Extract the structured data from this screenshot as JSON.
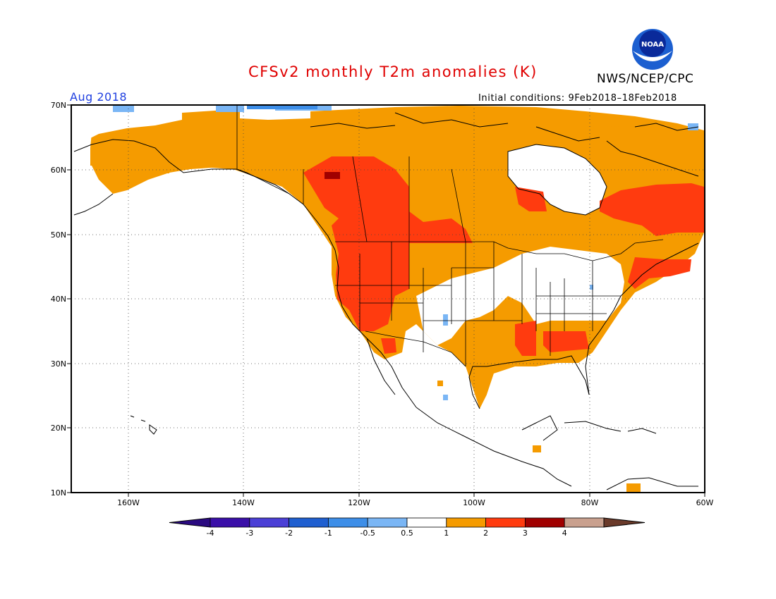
{
  "header": {
    "title": "CFSv2 monthly T2m anomalies (K)",
    "org": "NWS/NCEP/CPC",
    "period": "Aug 2018",
    "initial_conditions": "Initial conditions: 9Feb2018–18Feb2018",
    "logo_text": "NOAA"
  },
  "map": {
    "projection": "lat-lon",
    "lat_range": [
      10,
      70
    ],
    "lon_range": [
      -170,
      -60
    ],
    "lat_ticks": [
      "10N",
      "20N",
      "30N",
      "40N",
      "50N",
      "60N",
      "70N"
    ],
    "lon_ticks": [
      "160W",
      "140W",
      "120W",
      "100W",
      "80W",
      "60W"
    ],
    "grid": "dotted"
  },
  "legend": {
    "labels": [
      "-4",
      "-3",
      "-2",
      "-1",
      "-0.5",
      "0.5",
      "1",
      "2",
      "3",
      "4"
    ],
    "colors": [
      "#3a0fa8",
      "#4b3fd6",
      "#1f5fd0",
      "#3d8ee8",
      "#7ab6f5",
      "#ffffff",
      "#f59b00",
      "#ff3b0f",
      "#a00000",
      "#c9a08e",
      "#7a4a3a"
    ],
    "under_color": "#2a0a80",
    "over_color": "#6a3a2a"
  },
  "colors": {
    "map_orange": "#f59b00",
    "map_red": "#ff3b0f",
    "map_darkred": "#a00000",
    "map_lightblue": "#7ab6f5",
    "map_blue": "#3d8ee8"
  }
}
